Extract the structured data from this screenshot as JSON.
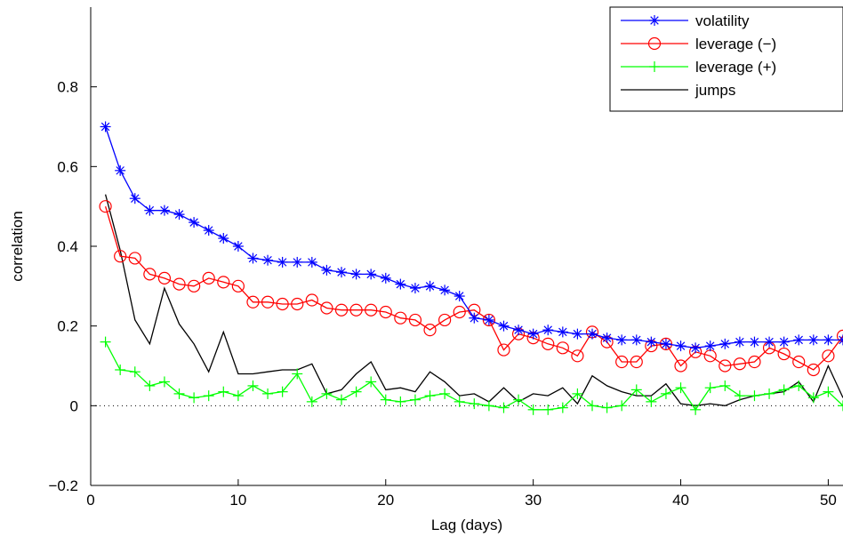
{
  "chart_data": {
    "type": "line",
    "title": "",
    "xlabel": "Lag (days)",
    "ylabel": "correlation",
    "xlim": [
      0,
      51
    ],
    "ylim": [
      -0.2,
      1.0
    ],
    "xticks": [
      0,
      10,
      20,
      30,
      40,
      50
    ],
    "xtick_labels": [
      "0",
      "10",
      "20",
      "30",
      "40",
      "50"
    ],
    "yticks": [
      -0.2,
      0,
      0.2,
      0.4,
      0.6,
      0.8
    ],
    "ytick_labels": [
      "−0.2",
      "0",
      "0.2",
      "0.4",
      "0.6",
      "0.8"
    ],
    "grid": false,
    "zero_line": "dotted",
    "legend_position": "top-right",
    "x": [
      1,
      2,
      3,
      4,
      5,
      6,
      7,
      8,
      9,
      10,
      11,
      12,
      13,
      14,
      15,
      16,
      17,
      18,
      19,
      20,
      21,
      22,
      23,
      24,
      25,
      26,
      27,
      28,
      29,
      30,
      31,
      32,
      33,
      34,
      35,
      36,
      37,
      38,
      39,
      40,
      41,
      42,
      43,
      44,
      45,
      46,
      47,
      48,
      49,
      50,
      51
    ],
    "series": [
      {
        "name": "volatility",
        "color": "#0000ff",
        "marker": "asterisk",
        "values": [
          0.7,
          0.59,
          0.52,
          0.49,
          0.49,
          0.48,
          0.46,
          0.44,
          0.42,
          0.4,
          0.37,
          0.365,
          0.36,
          0.36,
          0.36,
          0.34,
          0.335,
          0.33,
          0.33,
          0.32,
          0.305,
          0.295,
          0.3,
          0.29,
          0.275,
          0.22,
          0.215,
          0.2,
          0.19,
          0.18,
          0.19,
          0.185,
          0.18,
          0.18,
          0.17,
          0.165,
          0.165,
          0.16,
          0.155,
          0.15,
          0.145,
          0.15,
          0.155,
          0.16,
          0.16,
          0.16,
          0.16,
          0.165,
          0.165,
          0.165,
          0.165
        ]
      },
      {
        "name": "leverage (−)",
        "color": "#ff0000",
        "marker": "circle",
        "values": [
          0.5,
          0.375,
          0.37,
          0.33,
          0.32,
          0.305,
          0.3,
          0.32,
          0.31,
          0.3,
          0.26,
          0.26,
          0.255,
          0.255,
          0.265,
          0.245,
          0.24,
          0.24,
          0.24,
          0.235,
          0.22,
          0.215,
          0.19,
          0.215,
          0.235,
          0.24,
          0.215,
          0.14,
          0.18,
          0.17,
          0.155,
          0.145,
          0.125,
          0.185,
          0.16,
          0.11,
          0.11,
          0.15,
          0.155,
          0.1,
          0.135,
          0.125,
          0.1,
          0.105,
          0.11,
          0.145,
          0.13,
          0.11,
          0.09,
          0.125,
          0.175
        ]
      },
      {
        "name": "leverage (+)",
        "color": "#00ff00",
        "marker": "plus",
        "values": [
          0.16,
          0.09,
          0.085,
          0.05,
          0.06,
          0.03,
          0.02,
          0.025,
          0.035,
          0.025,
          0.05,
          0.03,
          0.035,
          0.08,
          0.01,
          0.03,
          0.015,
          0.035,
          0.06,
          0.015,
          0.01,
          0.015,
          0.025,
          0.03,
          0.01,
          0.005,
          0.0,
          -0.005,
          0.015,
          -0.01,
          -0.01,
          -0.005,
          0.03,
          0.0,
          -0.005,
          0.0,
          0.04,
          0.01,
          0.03,
          0.045,
          -0.01,
          0.045,
          0.05,
          0.025,
          0.025,
          0.03,
          0.04,
          0.05,
          0.02,
          0.035,
          0.0
        ]
      },
      {
        "name": "jumps",
        "color": "#000000",
        "marker": "none",
        "values": [
          0.53,
          0.39,
          0.215,
          0.155,
          0.295,
          0.205,
          0.155,
          0.085,
          0.185,
          0.08,
          0.08,
          0.085,
          0.09,
          0.09,
          0.105,
          0.03,
          0.04,
          0.08,
          0.11,
          0.04,
          0.045,
          0.035,
          0.085,
          0.06,
          0.025,
          0.03,
          0.01,
          0.045,
          0.01,
          0.03,
          0.025,
          0.045,
          0.005,
          0.075,
          0.05,
          0.035,
          0.025,
          0.025,
          0.055,
          0.005,
          0.0,
          0.005,
          0.0,
          0.015,
          0.025,
          0.03,
          0.035,
          0.06,
          0.01,
          0.1,
          0.02
        ]
      }
    ]
  }
}
